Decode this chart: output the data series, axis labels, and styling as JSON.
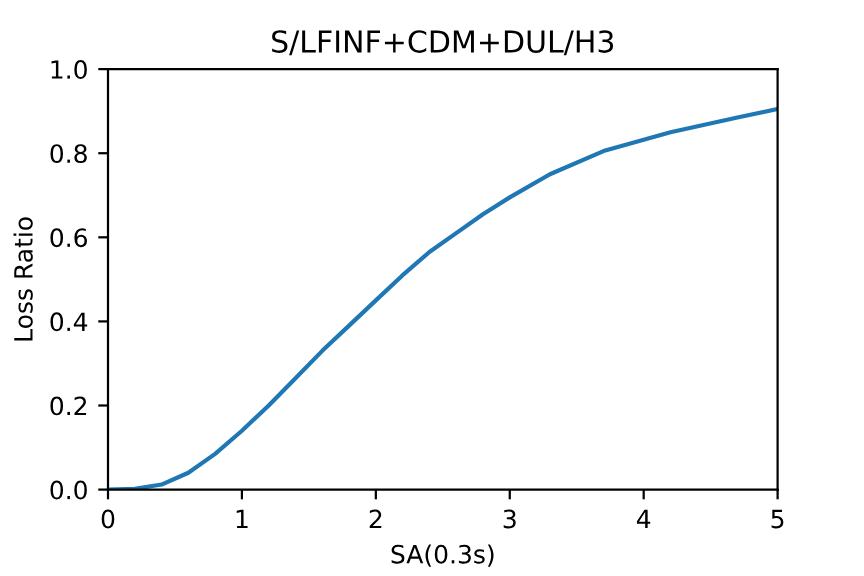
{
  "chart_data": {
    "type": "line",
    "title": "S/LFINF+CDM+DUL/H3",
    "xlabel": "SA(0.3s)",
    "ylabel": "Loss Ratio",
    "x": [
      0,
      0.2,
      0.4,
      0.6,
      0.8,
      1.0,
      1.2,
      1.4,
      1.6,
      1.8,
      2.0,
      2.2,
      2.4,
      2.6,
      2.8,
      3.0,
      3.3,
      3.7,
      4.2,
      4.7,
      5.0
    ],
    "series": [
      {
        "color": "#1f77b4",
        "values": [
          0,
          0.002,
          0.012,
          0.04,
          0.085,
          0.14,
          0.2,
          0.265,
          0.33,
          0.39,
          0.45,
          0.51,
          0.565,
          0.61,
          0.655,
          0.695,
          0.75,
          0.805,
          0.85,
          0.885,
          0.905
        ]
      }
    ],
    "xlim": [
      0,
      5
    ],
    "ylim": [
      0,
      1.0
    ],
    "xticks": [
      0,
      1,
      2,
      3,
      4,
      5
    ],
    "yticks": [
      {
        "value": 0,
        "label": "0.0"
      },
      {
        "value": 0.2,
        "label": "0.2"
      },
      {
        "value": 0.4,
        "label": "0.4"
      },
      {
        "value": 0.6,
        "label": "0.6"
      },
      {
        "value": 0.8,
        "label": "0.8"
      },
      {
        "value": 1.0,
        "label": "1.0"
      }
    ],
    "grid": false,
    "legend": false,
    "marker": "none",
    "line_style": "solid"
  }
}
